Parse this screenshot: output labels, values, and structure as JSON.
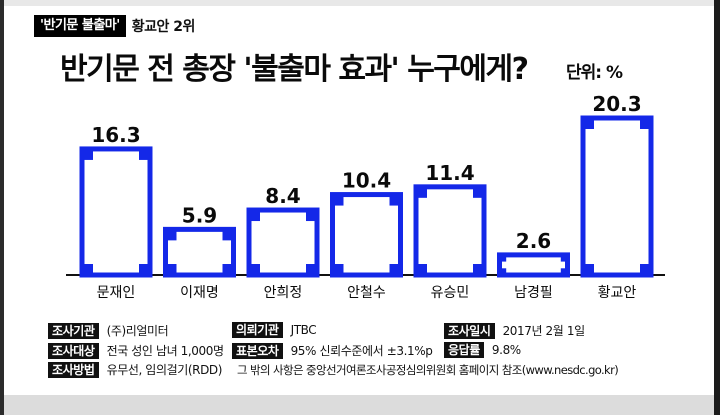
{
  "header": {
    "tag_box": "'반기문 불출마'",
    "tag_text": "황교안 2위",
    "title": "반기문 전 총장 '불출마 효과' 누구에게?",
    "unit": "단위: %"
  },
  "colors": {
    "bar_border": "#1428e8",
    "bar_fill": "#ffffff",
    "small_bar_fill": "#1428e8",
    "axis": "#111111",
    "text": "#0a0a0a"
  },
  "chart_data": {
    "type": "bar",
    "categories": [
      "문재인",
      "이재명",
      "안희정",
      "안철수",
      "유승민",
      "남경필",
      "황교안"
    ],
    "values": [
      16.3,
      5.9,
      8.4,
      10.4,
      11.4,
      2.6,
      20.3
    ],
    "value_labels": [
      "16.3",
      "5.9",
      "8.4",
      "10.4",
      "11.4",
      "2.6",
      "20.3"
    ],
    "ylim": [
      0,
      22
    ],
    "grid": false,
    "legend": "none"
  },
  "survey": {
    "rows": [
      {
        "label": "조사기관",
        "value": "(주)리얼미터"
      },
      {
        "label": "조사대상",
        "value": "전국 성인 남녀 1,000명"
      },
      {
        "label": "조사방법",
        "value": "유무선, 임의걸기(RDD)"
      },
      {
        "label": "의뢰기관",
        "value": "JTBC"
      },
      {
        "label": "표본오차",
        "value": "95% 신뢰수준에서 ±3.1%p"
      },
      {
        "label": "조사일시",
        "value": "2017년 2월 1일"
      },
      {
        "label": "응답률",
        "value": "9.8%"
      }
    ],
    "note": "그 밖의 사항은 중앙선거여론조사공정심의위원회 홈페이지 참조(www.nesdc.go.kr)"
  }
}
